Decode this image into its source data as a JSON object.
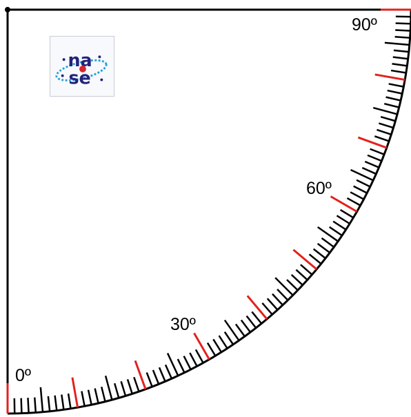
{
  "diagram": {
    "labels": {
      "zero": "0º",
      "thirty": "30º",
      "sixty": "60º",
      "ninety": "90º"
    },
    "scale": {
      "start_degrees": 0,
      "end_degrees": 90,
      "minor_step_degrees": 1,
      "major_step_degrees": 10,
      "mid_step_degrees": 5
    },
    "colors": {
      "frame": "#000000",
      "ticks": "#000000",
      "major_ticks": "#e3211c",
      "logo_blue": "#23237a",
      "logo_dot": "#d9252e",
      "logo_ring": "#29a3d9"
    },
    "logo": {
      "text": "nase",
      "icon": "nase-logo"
    }
  }
}
